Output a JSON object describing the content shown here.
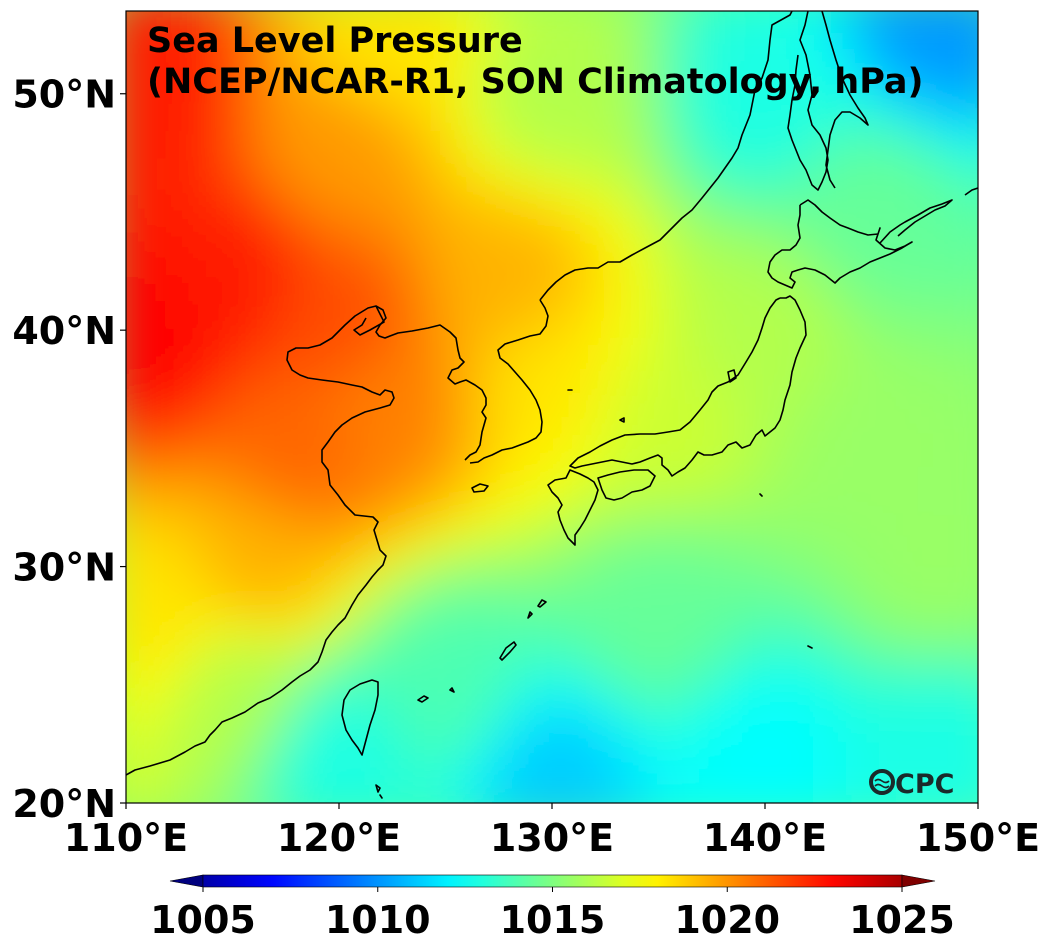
{
  "chart_data": {
    "type": "heatmap",
    "title": "Sea Level Pressure",
    "subtitle": "(NCEP/NCAR-R1, SON Climatology, hPa)",
    "variable": "Sea Level Pressure",
    "units": "hPa",
    "dataset": "NCEP/NCAR-R1",
    "season": "SON Climatology",
    "xlabel": "",
    "ylabel": "",
    "x_range": [
      110,
      150
    ],
    "y_range": [
      20,
      53.5
    ],
    "x_ticks": [
      110,
      120,
      130,
      140,
      150
    ],
    "x_tick_labels": [
      "110°E",
      "120°E",
      "130°E",
      "140°E",
      "150°E"
    ],
    "y_ticks": [
      20,
      30,
      40,
      50
    ],
    "y_tick_labels": [
      "20°N",
      "30°N",
      "40°N",
      "50°N"
    ],
    "colorbar": {
      "colormap": "jet",
      "range": [
        1005,
        1025
      ],
      "ticks": [
        1005,
        1010,
        1015,
        1020,
        1025
      ],
      "tick_labels": [
        "1005",
        "1010",
        "1015",
        "1020",
        "1025"
      ],
      "extend": "both",
      "orientation": "horizontal",
      "placement": "bottom"
    },
    "field_samples": [
      {
        "lon": 111,
        "lat": 40,
        "value": 1022.5
      },
      {
        "lon": 111,
        "lat": 50,
        "value": 1022
      },
      {
        "lon": 115,
        "lat": 42,
        "value": 1022
      },
      {
        "lon": 120,
        "lat": 40,
        "value": 1021
      },
      {
        "lon": 118,
        "lat": 35,
        "value": 1020.5
      },
      {
        "lon": 122,
        "lat": 37,
        "value": 1020
      },
      {
        "lon": 116,
        "lat": 30,
        "value": 1019
      },
      {
        "lon": 120,
        "lat": 48,
        "value": 1019.5
      },
      {
        "lon": 122,
        "lat": 52,
        "value": 1018
      },
      {
        "lon": 128,
        "lat": 42,
        "value": 1019
      },
      {
        "lon": 130,
        "lat": 38,
        "value": 1018
      },
      {
        "lon": 112,
        "lat": 28,
        "value": 1018
      },
      {
        "lon": 115,
        "lat": 25,
        "value": 1016
      },
      {
        "lon": 130,
        "lat": 50,
        "value": 1016
      },
      {
        "lon": 135,
        "lat": 36,
        "value": 1016.5
      },
      {
        "lon": 140,
        "lat": 40,
        "value": 1016
      },
      {
        "lon": 145,
        "lat": 45,
        "value": 1014.5
      },
      {
        "lon": 140,
        "lat": 50,
        "value": 1013
      },
      {
        "lon": 148,
        "lat": 53,
        "value": 1010.5
      },
      {
        "lon": 145,
        "lat": 35,
        "value": 1015.5
      },
      {
        "lon": 148,
        "lat": 30,
        "value": 1015.5
      },
      {
        "lon": 135,
        "lat": 28,
        "value": 1014.5
      },
      {
        "lon": 125,
        "lat": 25,
        "value": 1014
      },
      {
        "lon": 120,
        "lat": 22,
        "value": 1013
      },
      {
        "lon": 130,
        "lat": 21,
        "value": 1011.5
      },
      {
        "lon": 140,
        "lat": 22,
        "value": 1012.5
      },
      {
        "lon": 148,
        "lat": 22,
        "value": 1013
      }
    ],
    "features": [
      "coastlines"
    ],
    "grid": false
  },
  "logo": {
    "text": "CPC",
    "icon": "noaa-waves-icon"
  }
}
